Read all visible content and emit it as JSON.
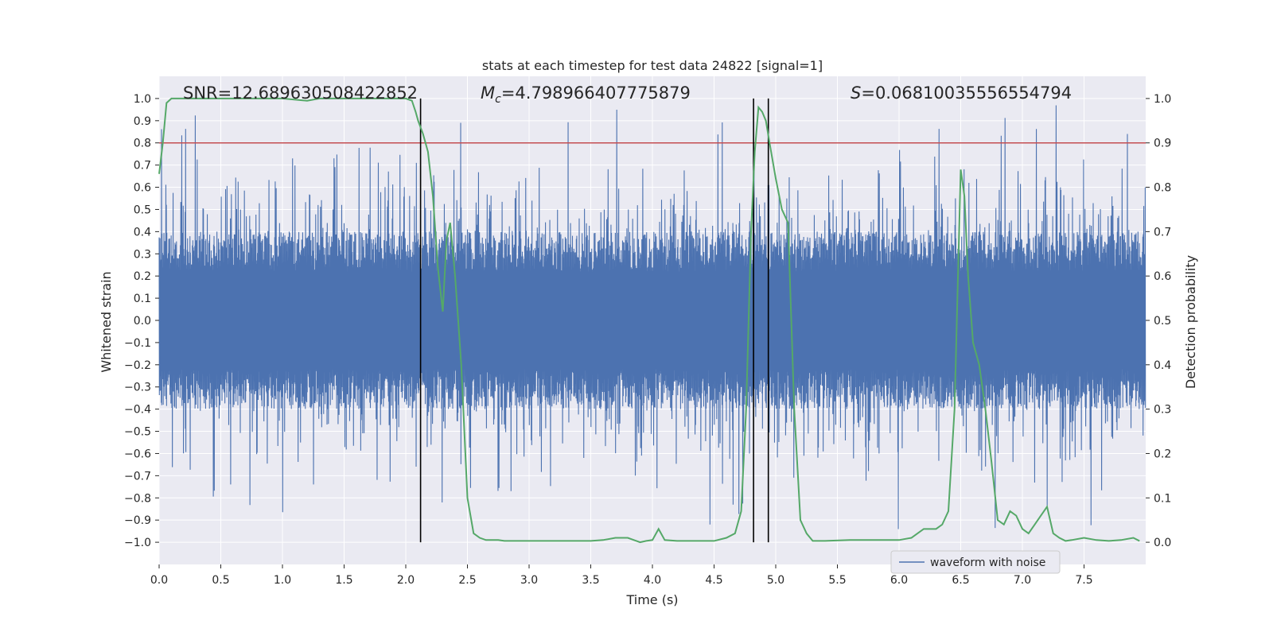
{
  "chart_data": {
    "type": "line",
    "title": "stats at each timestep for test data 24822 [signal=1]",
    "xlabel": "Time (s)",
    "ylabel_left": "Whitened strain",
    "ylabel_right": "Detection probability",
    "xlim": [
      0.0,
      8.0
    ],
    "ylim_left": [
      -1.1,
      1.1
    ],
    "ylim_right": [
      -0.05,
      1.05
    ],
    "x_ticks": [
      "0.0",
      "0.5",
      "1.0",
      "1.5",
      "2.0",
      "2.5",
      "3.0",
      "3.5",
      "4.0",
      "4.5",
      "5.0",
      "5.5",
      "6.0",
      "6.5",
      "7.0",
      "7.5"
    ],
    "y_left_ticks": [
      "1.0",
      "0.9",
      "0.8",
      "0.7",
      "0.6",
      "0.5",
      "0.4",
      "0.3",
      "0.2",
      "0.1",
      "0.0",
      "−0.1",
      "−0.2",
      "−0.3",
      "−0.4",
      "−0.5",
      "−0.6",
      "−0.7",
      "−0.8",
      "−0.9",
      "−1.0"
    ],
    "y_right_ticks": [
      "1.0",
      "0.9",
      "0.8",
      "0.7",
      "0.6",
      "0.5",
      "0.4",
      "0.3",
      "0.2",
      "0.1",
      "0.0"
    ],
    "annotations": {
      "snr": "SNR=12.689630508422852",
      "mc_symbol": "M",
      "mc_sub": "c",
      "mc_value": "=4.798966407775879",
      "s_symbol": "S",
      "s_value": "=0.06810035556554794"
    },
    "legend": {
      "label": "waveform with noise",
      "placement": "lower-right"
    },
    "threshold": {
      "value": 0.9,
      "axis": "right",
      "color": "#c44e52"
    },
    "vlines": [
      2.12,
      4.82,
      4.94
    ],
    "waveform_series": {
      "name": "waveform with noise",
      "color": "#4c72b0",
      "n_points": 4096,
      "typical_amplitude": 0.4,
      "peak_amplitude": 1.0,
      "noise_seed": 24822
    },
    "detection_probability": {
      "name": "Detection probability",
      "color": "#55a868",
      "x": [
        0.0,
        0.03,
        0.06,
        0.1,
        0.15,
        0.2,
        0.3,
        0.5,
        0.7,
        1.0,
        1.2,
        1.3,
        1.5,
        1.8,
        2.0,
        2.05,
        2.08,
        2.1,
        2.14,
        2.18,
        2.22,
        2.26,
        2.3,
        2.33,
        2.36,
        2.4,
        2.45,
        2.5,
        2.55,
        2.6,
        2.65,
        2.7,
        2.75,
        2.8,
        2.9,
        3.0,
        3.2,
        3.4,
        3.5,
        3.6,
        3.7,
        3.8,
        3.85,
        3.9,
        3.95,
        4.0,
        4.05,
        4.1,
        4.2,
        4.3,
        4.4,
        4.5,
        4.6,
        4.67,
        4.72,
        4.76,
        4.8,
        4.83,
        4.86,
        4.89,
        4.92,
        4.95,
        5.0,
        5.05,
        5.1,
        5.15,
        5.2,
        5.25,
        5.3,
        5.4,
        5.6,
        5.8,
        6.0,
        6.1,
        6.15,
        6.2,
        6.3,
        6.35,
        6.4,
        6.45,
        6.5,
        6.53,
        6.56,
        6.6,
        6.65,
        6.7,
        6.75,
        6.8,
        6.85,
        6.9,
        6.95,
        7.0,
        7.05,
        7.1,
        7.15,
        7.2,
        7.25,
        7.3,
        7.35,
        7.4,
        7.5,
        7.6,
        7.7,
        7.8,
        7.9,
        7.95
      ],
      "y": [
        0.83,
        0.9,
        0.99,
        1.0,
        1.0,
        1.0,
        1.0,
        1.0,
        1.0,
        1.0,
        0.995,
        1.0,
        1.0,
        1.0,
        1.0,
        0.995,
        0.97,
        0.95,
        0.92,
        0.88,
        0.78,
        0.62,
        0.52,
        0.68,
        0.72,
        0.6,
        0.4,
        0.1,
        0.02,
        0.01,
        0.005,
        0.005,
        0.005,
        0.003,
        0.003,
        0.003,
        0.003,
        0.003,
        0.003,
        0.005,
        0.01,
        0.01,
        0.005,
        0.0,
        0.003,
        0.005,
        0.03,
        0.005,
        0.003,
        0.003,
        0.003,
        0.003,
        0.01,
        0.02,
        0.07,
        0.3,
        0.7,
        0.88,
        0.98,
        0.97,
        0.95,
        0.9,
        0.82,
        0.75,
        0.72,
        0.3,
        0.05,
        0.02,
        0.003,
        0.003,
        0.005,
        0.005,
        0.005,
        0.01,
        0.02,
        0.03,
        0.03,
        0.04,
        0.07,
        0.3,
        0.84,
        0.78,
        0.6,
        0.45,
        0.4,
        0.3,
        0.18,
        0.05,
        0.04,
        0.07,
        0.06,
        0.03,
        0.02,
        0.04,
        0.06,
        0.08,
        0.02,
        0.01,
        0.003,
        0.005,
        0.01,
        0.005,
        0.003,
        0.005,
        0.01,
        0.003
      ]
    }
  }
}
